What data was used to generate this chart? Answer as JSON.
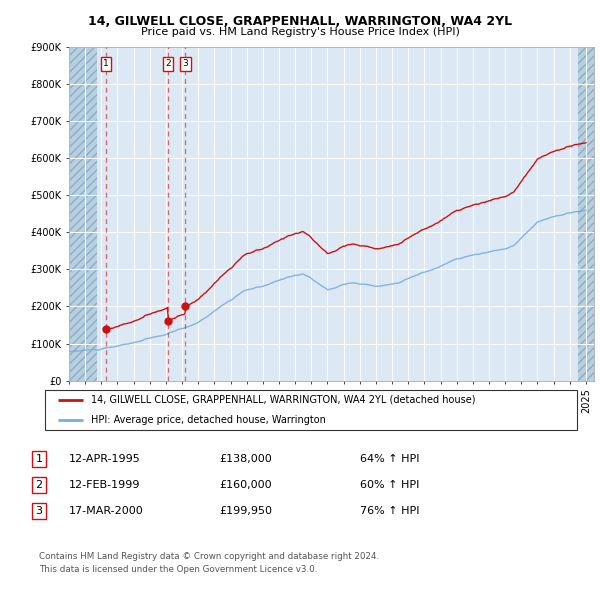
{
  "title1": "14, GILWELL CLOSE, GRAPPENHALL, WARRINGTON, WA4 2YL",
  "title2": "Price paid vs. HM Land Registry's House Price Index (HPI)",
  "transactions": [
    {
      "num": 1,
      "date": "12-APR-1995",
      "year": 1995.28,
      "price": 138000,
      "pct": "64%"
    },
    {
      "num": 2,
      "date": "12-FEB-1999",
      "year": 1999.12,
      "price": 160000,
      "pct": "60%"
    },
    {
      "num": 3,
      "date": "17-MAR-2000",
      "year": 2000.21,
      "price": 199950,
      "pct": "76%"
    }
  ],
  "legend_line1": "14, GILWELL CLOSE, GRAPPENHALL, WARRINGTON, WA4 2YL (detached house)",
  "legend_line2": "HPI: Average price, detached house, Warrington",
  "table_rows": [
    [
      "1",
      "12-APR-1995",
      "£138,000",
      "64% ↑ HPI"
    ],
    [
      "2",
      "12-FEB-1999",
      "£160,000",
      "60% ↑ HPI"
    ],
    [
      "3",
      "17-MAR-2000",
      "£199,950",
      "76% ↑ HPI"
    ]
  ],
  "footnote1": "Contains HM Land Registry data © Crown copyright and database right 2024.",
  "footnote2": "This data is licensed under the Open Government Licence v3.0.",
  "ylim": [
    0,
    900000
  ],
  "xlim_left": 1993.0,
  "xlim_right": 2025.5,
  "hatch_left_end": 1994.75,
  "hatch_right_start": 2024.5,
  "plot_bg": "#dce9f5",
  "hatch_color": "#b8cfe0",
  "red_color": "#cc1111",
  "blue_color": "#7aaddd"
}
